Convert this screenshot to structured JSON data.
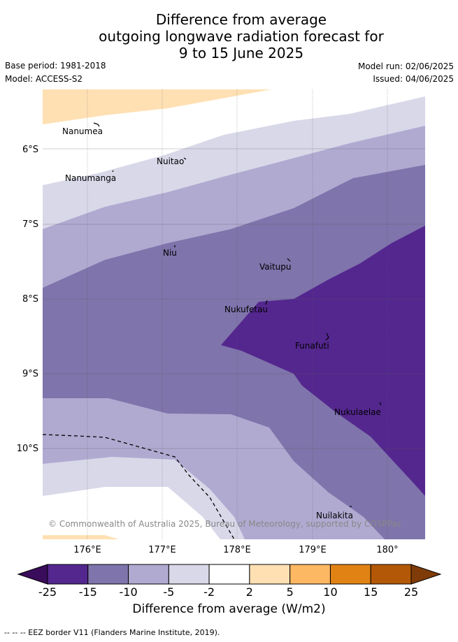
{
  "title": {
    "line1": "Difference from average",
    "line2": "outgoing longwave radiation forecast for",
    "line3": "9 to 15 June 2025"
  },
  "meta": {
    "base_period": "Base period: 1981-2018",
    "model": "Model: ACCESS-S2",
    "model_run": "Model run: 02/06/2025",
    "issued": "Issued: 04/06/2025"
  },
  "map": {
    "lat_ticks": [
      "6°S",
      "7°S",
      "8°S",
      "9°S",
      "10°S"
    ],
    "lon_ticks": [
      "176°E",
      "177°E",
      "178°E",
      "179°E",
      "180°"
    ],
    "places": [
      {
        "name": "Nanumea",
        "lon": 175.99,
        "lat": -5.67
      },
      {
        "name": "Nuitao",
        "lon": 177.33,
        "lat": -6.11
      },
      {
        "name": "Nanumanga",
        "lon": 176.32,
        "lat": -6.29
      },
      {
        "name": "Niu",
        "lon": 177.17,
        "lat": -7.3
      },
      {
        "name": "Vaitupu",
        "lon": 178.67,
        "lat": -7.48
      },
      {
        "name": "Nukufetau",
        "lon": 178.38,
        "lat": -8.02
      },
      {
        "name": "Funafuti",
        "lon": 179.2,
        "lat": -8.52
      },
      {
        "name": "Nukulaelae",
        "lon": 179.83,
        "lat": -9.38
      },
      {
        "name": "Nuilakita",
        "lon": 179.5,
        "lat": -10.78
      }
    ],
    "copyright": "© Commonwealth of Australia 2025, Bureau of Meteorology, supported by COSPPac"
  },
  "colorbar": {
    "tick_labels": [
      "-25",
      "-15",
      "-10",
      "-5",
      "-2",
      "2",
      "5",
      "10",
      "15",
      "25"
    ],
    "colors": [
      "#54278f",
      "#7f74ab",
      "#b0aad1",
      "#d8d8e9",
      "#ffffff",
      "#ffe0b3",
      "#fdb863",
      "#e08214",
      "#b35806"
    ],
    "under_color": "#3a0c5c",
    "over_color": "#7f3b08",
    "title": "Difference from average (W/m2)"
  },
  "footer": "--  --  -- EEZ border V11 (Flanders Marine Institute, 2019)."
}
